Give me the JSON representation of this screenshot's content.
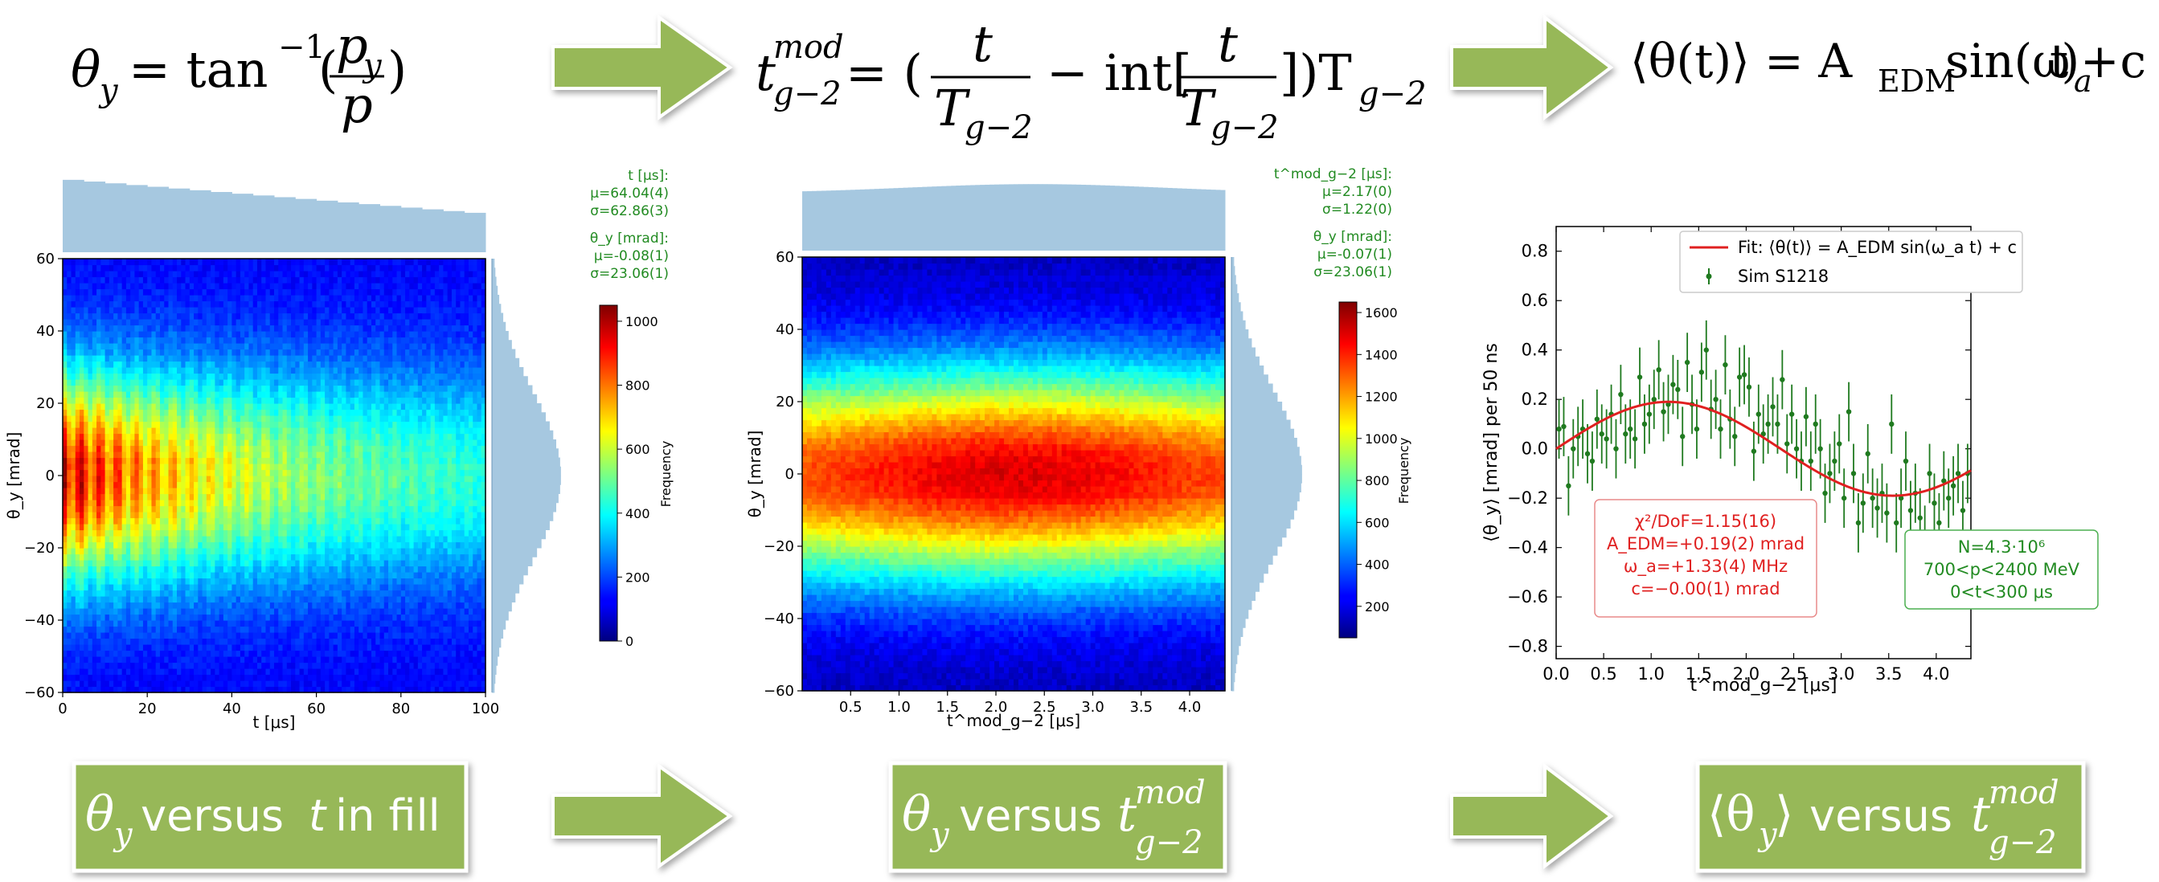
{
  "colors": {
    "green_box": "#97b858",
    "green_text": "#228b22",
    "fit_red": "#e02020",
    "hist_blue": "#a6c8e0",
    "data_green": "#1f7a1f"
  },
  "equations": [
    {
      "lhs": "θ",
      "lhs_sub": "y",
      "rest": "= tan",
      "sup": "−1",
      "frac_num": "p",
      "frac_num_sub": "y",
      "frac_den": "p"
    },
    {
      "lhs": "t",
      "lhs_sup": "mod",
      "lhs_sub": "g−2",
      "eq": "= (",
      "frac1_num": "t",
      "frac1_den": "T",
      "frac1_den_sub": "g−2",
      "minus": "− int[",
      "frac2_num": "t",
      "frac2_den": "T",
      "frac2_den_sub": "g−2",
      "close": "])T",
      "close_sub": "g−2"
    },
    {
      "text_a": "⟨θ(t)⟩ = A",
      "sub_a": "EDM",
      "text_b": " sin(ω",
      "sub_b": "a",
      "text_c": "t) + c"
    }
  ],
  "captions": [
    {
      "a": "θ",
      "a_sub": "y",
      "b": " versus ",
      "c": "t",
      "d": " in fill"
    },
    {
      "a": "θ",
      "a_sub": "y",
      "b": " versus ",
      "c": "t",
      "c_sup": "mod",
      "c_sub": "g−2"
    },
    {
      "a": "⟨θ",
      "a_sub": "y",
      "a_close": "⟩",
      "b": " versus ",
      "c": "t",
      "c_sup": "mod",
      "c_sub": "g−2"
    }
  ],
  "chart_data": [
    {
      "type": "heatmap",
      "xlabel": "t [μs]",
      "ylabel": "θ_y [mrad]",
      "xlim": [
        0,
        100
      ],
      "ylim": [
        -60,
        60
      ],
      "xticks": [
        0,
        20,
        40,
        60,
        80,
        100
      ],
      "yticks": [
        -60,
        -40,
        -20,
        0,
        20,
        40,
        60
      ],
      "colorbar": {
        "label": "Frequency",
        "range": [
          0,
          1050
        ],
        "ticks": [
          0,
          200,
          400,
          600,
          800,
          1000
        ]
      },
      "stats": [
        {
          "name": "t [μs]:",
          "mu": "μ=64.04(4)",
          "sigma": "σ=62.86(3)"
        },
        {
          "name": "θ_y [mrad]:",
          "mu": "μ=-0.08(1)",
          "sigma": "σ=23.06(1)"
        }
      ]
    },
    {
      "type": "heatmap",
      "xlabel": "t^mod_g−2 [μs]",
      "ylabel": "θ_y [mrad]",
      "xlim": [
        0,
        4.365
      ],
      "ylim": [
        -60,
        60
      ],
      "xticks": [
        0.5,
        1.0,
        1.5,
        2.0,
        2.5,
        3.0,
        3.5,
        4.0
      ],
      "yticks": [
        -60,
        -40,
        -20,
        0,
        20,
        40,
        60
      ],
      "colorbar": {
        "label": "Frequency",
        "range": [
          50,
          1650
        ],
        "ticks": [
          200,
          400,
          600,
          800,
          1000,
          1200,
          1400,
          1600
        ]
      },
      "stats": [
        {
          "name": "t^mod_g−2 [μs]:",
          "mu": "μ=2.17(0)",
          "sigma": "σ=1.22(0)"
        },
        {
          "name": "θ_y [mrad]:",
          "mu": "μ=-0.07(1)",
          "sigma": "σ=23.06(1)"
        }
      ]
    },
    {
      "type": "scatter",
      "xlabel": "t^mod_g−2 [μs]",
      "ylabel": "⟨θ_y⟩ [mrad] per 50 ns",
      "xlim": [
        0.0,
        4.365
      ],
      "ylim": [
        -0.85,
        0.9
      ],
      "xticks": [
        0.0,
        0.5,
        1.0,
        1.5,
        2.0,
        2.5,
        3.0,
        3.5,
        4.0
      ],
      "yticks": [
        -0.8,
        -0.6,
        -0.4,
        -0.2,
        0.0,
        0.2,
        0.4,
        0.6,
        0.8
      ],
      "legend": [
        {
          "label": "Fit: ⟨θ(t)⟩ = A_EDM sin(ω_a t) + c",
          "kind": "line"
        },
        {
          "label": "Sim S1218",
          "kind": "errorbar"
        }
      ],
      "fit": {
        "A": 0.19,
        "omega": 1.33,
        "c": 0.0
      },
      "fit_box": [
        "χ²/DoF=1.15(16)",
        "A_EDM=+0.19(2) mrad",
        "ω_a=+1.33(4) MHz",
        "c=−0.00(1) mrad"
      ],
      "info_box": [
        "N=4.3·10⁶",
        "700<p<2400 MeV",
        "0<t<300 μs"
      ],
      "points": {
        "x": [
          0.03,
          0.08,
          0.13,
          0.18,
          0.23,
          0.28,
          0.33,
          0.38,
          0.43,
          0.48,
          0.53,
          0.58,
          0.63,
          0.68,
          0.73,
          0.78,
          0.83,
          0.88,
          0.93,
          0.98,
          1.03,
          1.08,
          1.13,
          1.18,
          1.23,
          1.28,
          1.33,
          1.38,
          1.43,
          1.48,
          1.53,
          1.58,
          1.63,
          1.68,
          1.73,
          1.78,
          1.83,
          1.88,
          1.93,
          1.98,
          2.03,
          2.08,
          2.13,
          2.18,
          2.23,
          2.28,
          2.33,
          2.38,
          2.43,
          2.48,
          2.53,
          2.58,
          2.63,
          2.68,
          2.73,
          2.78,
          2.83,
          2.88,
          2.93,
          2.98,
          3.03,
          3.08,
          3.13,
          3.18,
          3.23,
          3.28,
          3.33,
          3.38,
          3.43,
          3.48,
          3.53,
          3.58,
          3.63,
          3.68,
          3.73,
          3.78,
          3.83,
          3.88,
          3.93,
          3.98,
          4.03,
          4.08,
          4.13,
          4.18,
          4.23,
          4.28,
          4.33
        ],
        "y": [
          0.08,
          0.09,
          -0.15,
          0.0,
          0.05,
          0.08,
          -0.02,
          -0.05,
          0.12,
          0.06,
          0.04,
          0.14,
          0.0,
          0.22,
          0.06,
          0.08,
          0.04,
          0.29,
          0.1,
          0.14,
          0.2,
          0.32,
          0.15,
          0.18,
          0.26,
          0.24,
          0.05,
          0.35,
          0.18,
          0.08,
          0.31,
          0.4,
          0.16,
          0.2,
          0.08,
          0.34,
          0.12,
          0.05,
          0.29,
          0.3,
          0.25,
          -0.01,
          0.14,
          0.06,
          0.1,
          0.17,
          0.1,
          0.28,
          0.02,
          0.14,
          0.0,
          -0.05,
          0.13,
          -0.05,
          0.1,
          0.0,
          -0.18,
          -0.1,
          -0.05,
          0.02,
          -0.2,
          0.15,
          -0.1,
          -0.3,
          -0.22,
          -0.02,
          -0.2,
          -0.24,
          -0.18,
          -0.26,
          0.1,
          -0.3,
          -0.2,
          -0.05,
          -0.25,
          -0.18,
          -0.28,
          -0.35,
          -0.1,
          -0.22,
          -0.3,
          -0.13,
          -0.2,
          -0.15,
          -0.1,
          -0.25,
          -0.1
        ],
        "err": 0.12
      }
    }
  ]
}
